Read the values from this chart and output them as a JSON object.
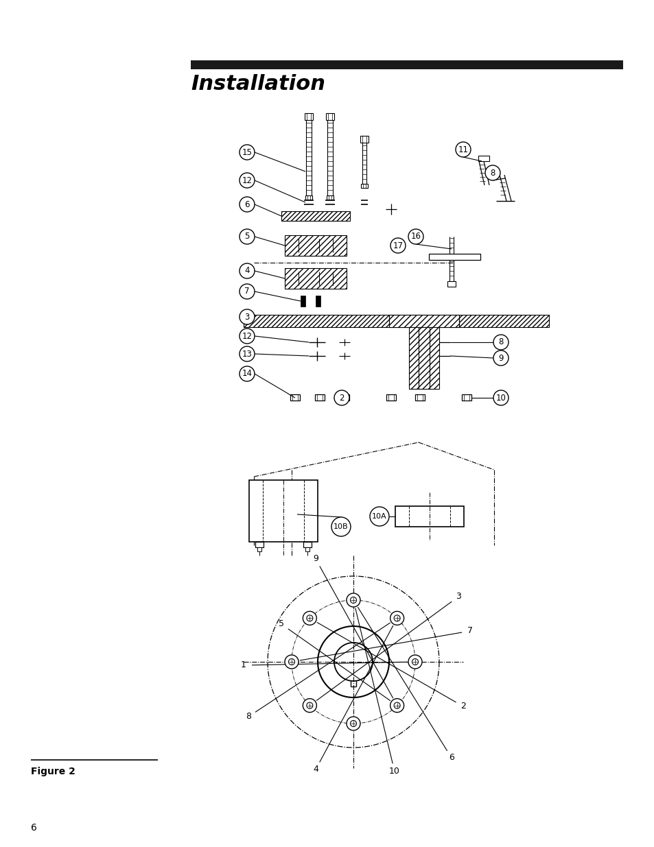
{
  "bg_color": "#ffffff",
  "title": "Installation",
  "title_bar_color": "#1a1a1a",
  "figure_label": "Figure 2",
  "page_number": "6"
}
